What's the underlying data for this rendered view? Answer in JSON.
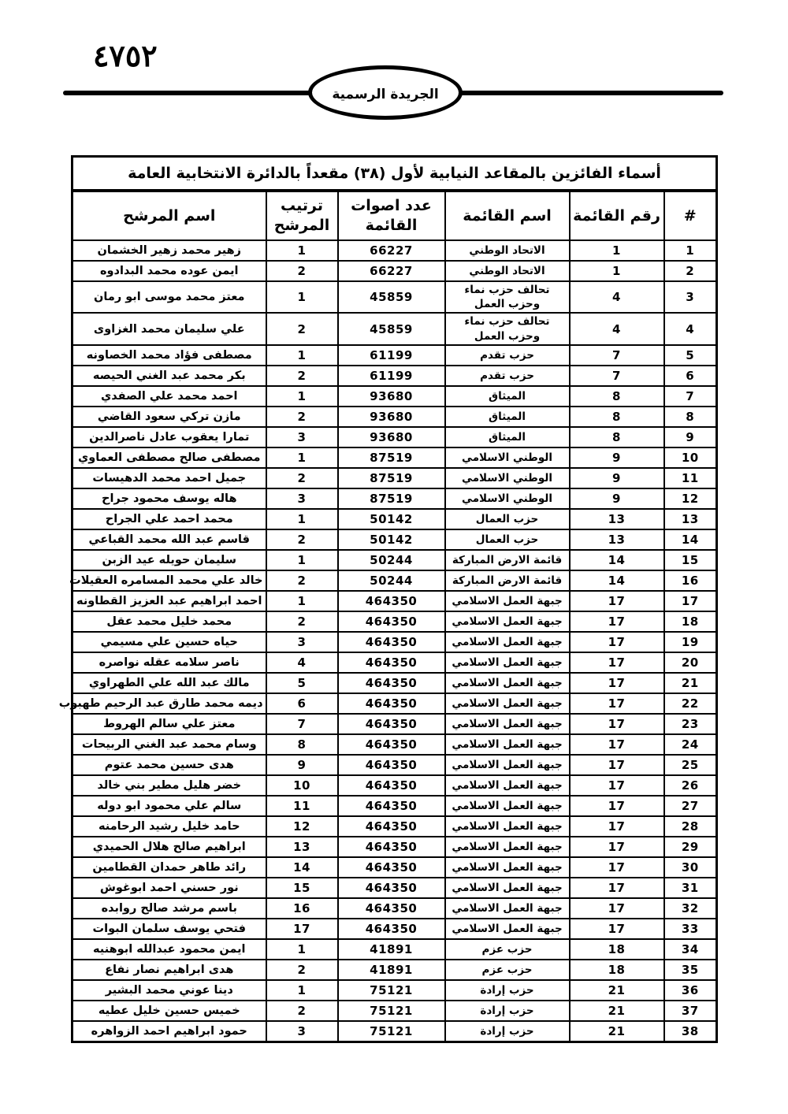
{
  "header": {
    "page_number": "٤٧٥٢",
    "gazette_label": "الجريدة الرسمية"
  },
  "colors": {
    "ink": "#000000",
    "paper": "#ffffff"
  },
  "table": {
    "title": "أسماء الفائزين بالمقاعد النيابية لأول (٣٨) مقعداً بالدائرة الانتخابية العامة",
    "columns": {
      "index": "#",
      "list_number": "رقم القائمة",
      "list_name": "اسم القائمة",
      "list_votes": "عدد اصوات القائمة",
      "candidate_rank": "ترتيب المرشح",
      "candidate_name": "اسم المرشح"
    },
    "rows": [
      {
        "index": "1",
        "list_number": "1",
        "list_name": "الاتحاد الوطني",
        "list_votes": "66227",
        "candidate_rank": "1",
        "candidate_name": "زهير محمد زهير الخشمان"
      },
      {
        "index": "2",
        "list_number": "1",
        "list_name": "الاتحاد الوطني",
        "list_votes": "66227",
        "candidate_rank": "2",
        "candidate_name": "ايمن عوده محمد البدادوه"
      },
      {
        "index": "3",
        "list_number": "4",
        "list_name": "تحالف حزب نماء وحزب العمل",
        "list_votes": "45859",
        "candidate_rank": "1",
        "candidate_name": "معتز محمد موسى ابو رمان"
      },
      {
        "index": "4",
        "list_number": "4",
        "list_name": "تحالف حزب نماء وحزب العمل",
        "list_votes": "45859",
        "candidate_rank": "2",
        "candidate_name": "علي سليمان محمد الغزاوى"
      },
      {
        "index": "5",
        "list_number": "7",
        "list_name": "حزب تقدم",
        "list_votes": "61199",
        "candidate_rank": "1",
        "candidate_name": "مصطفى فؤاد محمد الخصاونه"
      },
      {
        "index": "6",
        "list_number": "7",
        "list_name": "حزب تقدم",
        "list_votes": "61199",
        "candidate_rank": "2",
        "candidate_name": "بكر محمد عبد الغني الحيصه"
      },
      {
        "index": "7",
        "list_number": "8",
        "list_name": "الميثاق",
        "list_votes": "93680",
        "candidate_rank": "1",
        "candidate_name": "احمد محمد علي الصفدي"
      },
      {
        "index": "8",
        "list_number": "8",
        "list_name": "الميثاق",
        "list_votes": "93680",
        "candidate_rank": "2",
        "candidate_name": "مازن تركي سعود القاضي"
      },
      {
        "index": "9",
        "list_number": "8",
        "list_name": "الميثاق",
        "list_votes": "93680",
        "candidate_rank": "3",
        "candidate_name": "تمارا يعقوب عادل ناصرالدين"
      },
      {
        "index": "10",
        "list_number": "9",
        "list_name": "الوطني الاسلامي",
        "list_votes": "87519",
        "candidate_rank": "1",
        "candidate_name": "مصطفى صالح مصطفى العماوي"
      },
      {
        "index": "11",
        "list_number": "9",
        "list_name": "الوطني الاسلامي",
        "list_votes": "87519",
        "candidate_rank": "2",
        "candidate_name": "جميل احمد محمد الدهيسات"
      },
      {
        "index": "12",
        "list_number": "9",
        "list_name": "الوطني الاسلامي",
        "list_votes": "87519",
        "candidate_rank": "3",
        "candidate_name": "هاله يوسف محمود جراح"
      },
      {
        "index": "13",
        "list_number": "13",
        "list_name": "حزب العمال",
        "list_votes": "50142",
        "candidate_rank": "1",
        "candidate_name": "محمد احمد علي الجراح"
      },
      {
        "index": "14",
        "list_number": "13",
        "list_name": "حزب العمال",
        "list_votes": "50142",
        "candidate_rank": "2",
        "candidate_name": "قاسم عبد الله محمد القباعي"
      },
      {
        "index": "15",
        "list_number": "14",
        "list_name": "قائمة الارض المباركة",
        "list_votes": "50244",
        "candidate_rank": "1",
        "candidate_name": "سليمان حويله عيد الزبن"
      },
      {
        "index": "16",
        "list_number": "14",
        "list_name": "قائمة الارض المباركة",
        "list_votes": "50244",
        "candidate_rank": "2",
        "candidate_name": "خالد علي محمد المسامره العقيلات"
      },
      {
        "index": "17",
        "list_number": "17",
        "list_name": "جبهة العمل الاسلامي",
        "list_votes": "464350",
        "candidate_rank": "1",
        "candidate_name": "احمد ابراهيم عبد العزيز القطاونه"
      },
      {
        "index": "18",
        "list_number": "17",
        "list_name": "جبهة العمل الاسلامي",
        "list_votes": "464350",
        "candidate_rank": "2",
        "candidate_name": "محمد خليل محمد عقل"
      },
      {
        "index": "19",
        "list_number": "17",
        "list_name": "جبهة العمل الاسلامي",
        "list_votes": "464350",
        "candidate_rank": "3",
        "candidate_name": "حياه حسين علي مسيمي"
      },
      {
        "index": "20",
        "list_number": "17",
        "list_name": "جبهة العمل الاسلامي",
        "list_votes": "464350",
        "candidate_rank": "4",
        "candidate_name": "ناصر سلامه عقله نواصره"
      },
      {
        "index": "21",
        "list_number": "17",
        "list_name": "جبهة العمل الاسلامي",
        "list_votes": "464350",
        "candidate_rank": "5",
        "candidate_name": "مالك عبد الله علي الطهراوي"
      },
      {
        "index": "22",
        "list_number": "17",
        "list_name": "جبهة العمل الاسلامي",
        "list_votes": "464350",
        "candidate_rank": "6",
        "candidate_name": "ديمه محمد طارق عبد الرحيم طهبوب"
      },
      {
        "index": "23",
        "list_number": "17",
        "list_name": "جبهة العمل الاسلامي",
        "list_votes": "464350",
        "candidate_rank": "7",
        "candidate_name": "معتز علي سالم الهروط"
      },
      {
        "index": "24",
        "list_number": "17",
        "list_name": "جبهة العمل الاسلامي",
        "list_votes": "464350",
        "candidate_rank": "8",
        "candidate_name": "وسام محمد عبد الغني الربيحات"
      },
      {
        "index": "25",
        "list_number": "17",
        "list_name": "جبهة العمل الاسلامي",
        "list_votes": "464350",
        "candidate_rank": "9",
        "candidate_name": "هدى حسين محمد عتوم"
      },
      {
        "index": "26",
        "list_number": "17",
        "list_name": "جبهة العمل الاسلامي",
        "list_votes": "464350",
        "candidate_rank": "10",
        "candidate_name": "خضر هليل مطير بني خالد"
      },
      {
        "index": "27",
        "list_number": "17",
        "list_name": "جبهة العمل الاسلامي",
        "list_votes": "464350",
        "candidate_rank": "11",
        "candidate_name": "سالم علي محمود ابو دوله"
      },
      {
        "index": "28",
        "list_number": "17",
        "list_name": "جبهة العمل الاسلامي",
        "list_votes": "464350",
        "candidate_rank": "12",
        "candidate_name": "حامد خليل رشيد الرحامنه"
      },
      {
        "index": "29",
        "list_number": "17",
        "list_name": "جبهة العمل الاسلامي",
        "list_votes": "464350",
        "candidate_rank": "13",
        "candidate_name": "ابراهيم صالح هلال الحميدي"
      },
      {
        "index": "30",
        "list_number": "17",
        "list_name": "جبهة العمل الاسلامي",
        "list_votes": "464350",
        "candidate_rank": "14",
        "candidate_name": "رائد طاهر حمدان القطامين"
      },
      {
        "index": "31",
        "list_number": "17",
        "list_name": "جبهة العمل الاسلامي",
        "list_votes": "464350",
        "candidate_rank": "15",
        "candidate_name": "نور حسني احمد ابوغوش"
      },
      {
        "index": "32",
        "list_number": "17",
        "list_name": "جبهة العمل الاسلامي",
        "list_votes": "464350",
        "candidate_rank": "16",
        "candidate_name": "باسم مرشد صالح روابده"
      },
      {
        "index": "33",
        "list_number": "17",
        "list_name": "جبهة العمل الاسلامي",
        "list_votes": "464350",
        "candidate_rank": "17",
        "candidate_name": "فتحي يوسف سلمان البوات"
      },
      {
        "index": "34",
        "list_number": "18",
        "list_name": "حزب عزم",
        "list_votes": "41891",
        "candidate_rank": "1",
        "candidate_name": "ايمن محمود عبدالله ابوهنيه"
      },
      {
        "index": "35",
        "list_number": "18",
        "list_name": "حزب عزم",
        "list_votes": "41891",
        "candidate_rank": "2",
        "candidate_name": "هدى ابراهيم نصار نفاع"
      },
      {
        "index": "36",
        "list_number": "21",
        "list_name": "حزب إرادة",
        "list_votes": "75121",
        "candidate_rank": "1",
        "candidate_name": "دينا عوني محمد البشير"
      },
      {
        "index": "37",
        "list_number": "21",
        "list_name": "حزب إرادة",
        "list_votes": "75121",
        "candidate_rank": "2",
        "candidate_name": "خميس حسين خليل عطيه"
      },
      {
        "index": "38",
        "list_number": "21",
        "list_name": "حزب إرادة",
        "list_votes": "75121",
        "candidate_rank": "3",
        "candidate_name": "حمود ابراهيم احمد الزواهره"
      }
    ]
  }
}
